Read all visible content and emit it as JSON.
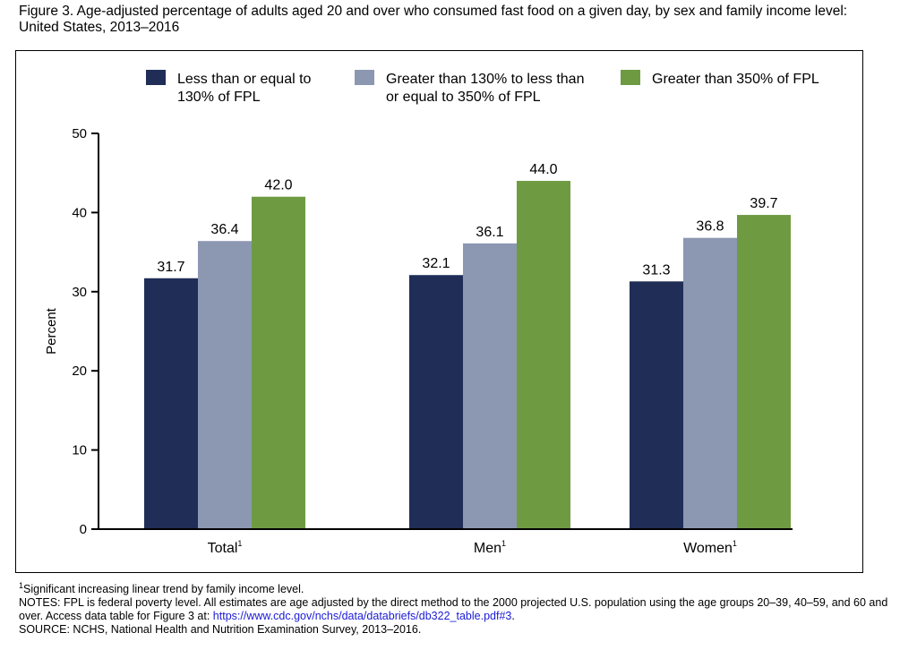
{
  "figure": {
    "title": "Figure 3. Age-adjusted percentage of adults aged 20 and over who consumed fast food on a given day, by sex and family income level: United States, 2013–2016"
  },
  "chart_data": {
    "type": "bar",
    "categories": [
      "Total",
      "Men",
      "Women"
    ],
    "category_superscripts": [
      "1",
      "1",
      "1"
    ],
    "series": [
      {
        "name": "Less than or equal to 130% of FPL",
        "legend_lines": [
          "Less than or equal to",
          "130% of FPL"
        ],
        "color": "#1f2d57",
        "values": [
          31.7,
          32.1,
          31.3
        ]
      },
      {
        "name": "Greater than 130% to less than or equal to 350% of FPL",
        "legend_lines": [
          "Greater than 130% to less than",
          "or equal to 350% of FPL"
        ],
        "color": "#8c97b2",
        "values": [
          36.4,
          36.1,
          36.8
        ]
      },
      {
        "name": "Greater than 350% of FPL",
        "legend_lines": [
          "Greater than 350% of FPL"
        ],
        "color": "#6e9b42",
        "values": [
          42.0,
          44.0,
          39.7
        ]
      }
    ],
    "value_labels": [
      [
        "31.7",
        "32.1",
        "31.3"
      ],
      [
        "36.4",
        "36.1",
        "36.8"
      ],
      [
        "42.0",
        "44.0",
        "39.7"
      ]
    ],
    "xlabel": "",
    "ylabel": "Percent",
    "ylim": [
      0,
      50
    ],
    "yticks": [
      0,
      10,
      20,
      30,
      40,
      50
    ],
    "grid": false,
    "legend_position": "top"
  },
  "notes": {
    "footnote_mark": "1",
    "footnote": "Significant increasing linear trend by family income level.",
    "notes_text": "NOTES: FPL is federal poverty level. All estimates are age adjusted by the direct method to the 2000 projected U.S. population using the age groups 20–39, 40–59, and 60 and over. Access data table for Figure 3 at: ",
    "link_text": "https://www.cdc.gov/nchs/data/databriefs/db322_table.pdf#3",
    "notes_end": ".",
    "source": "SOURCE: NCHS, National Health and Nutrition Examination Survey, 2013–2016."
  }
}
